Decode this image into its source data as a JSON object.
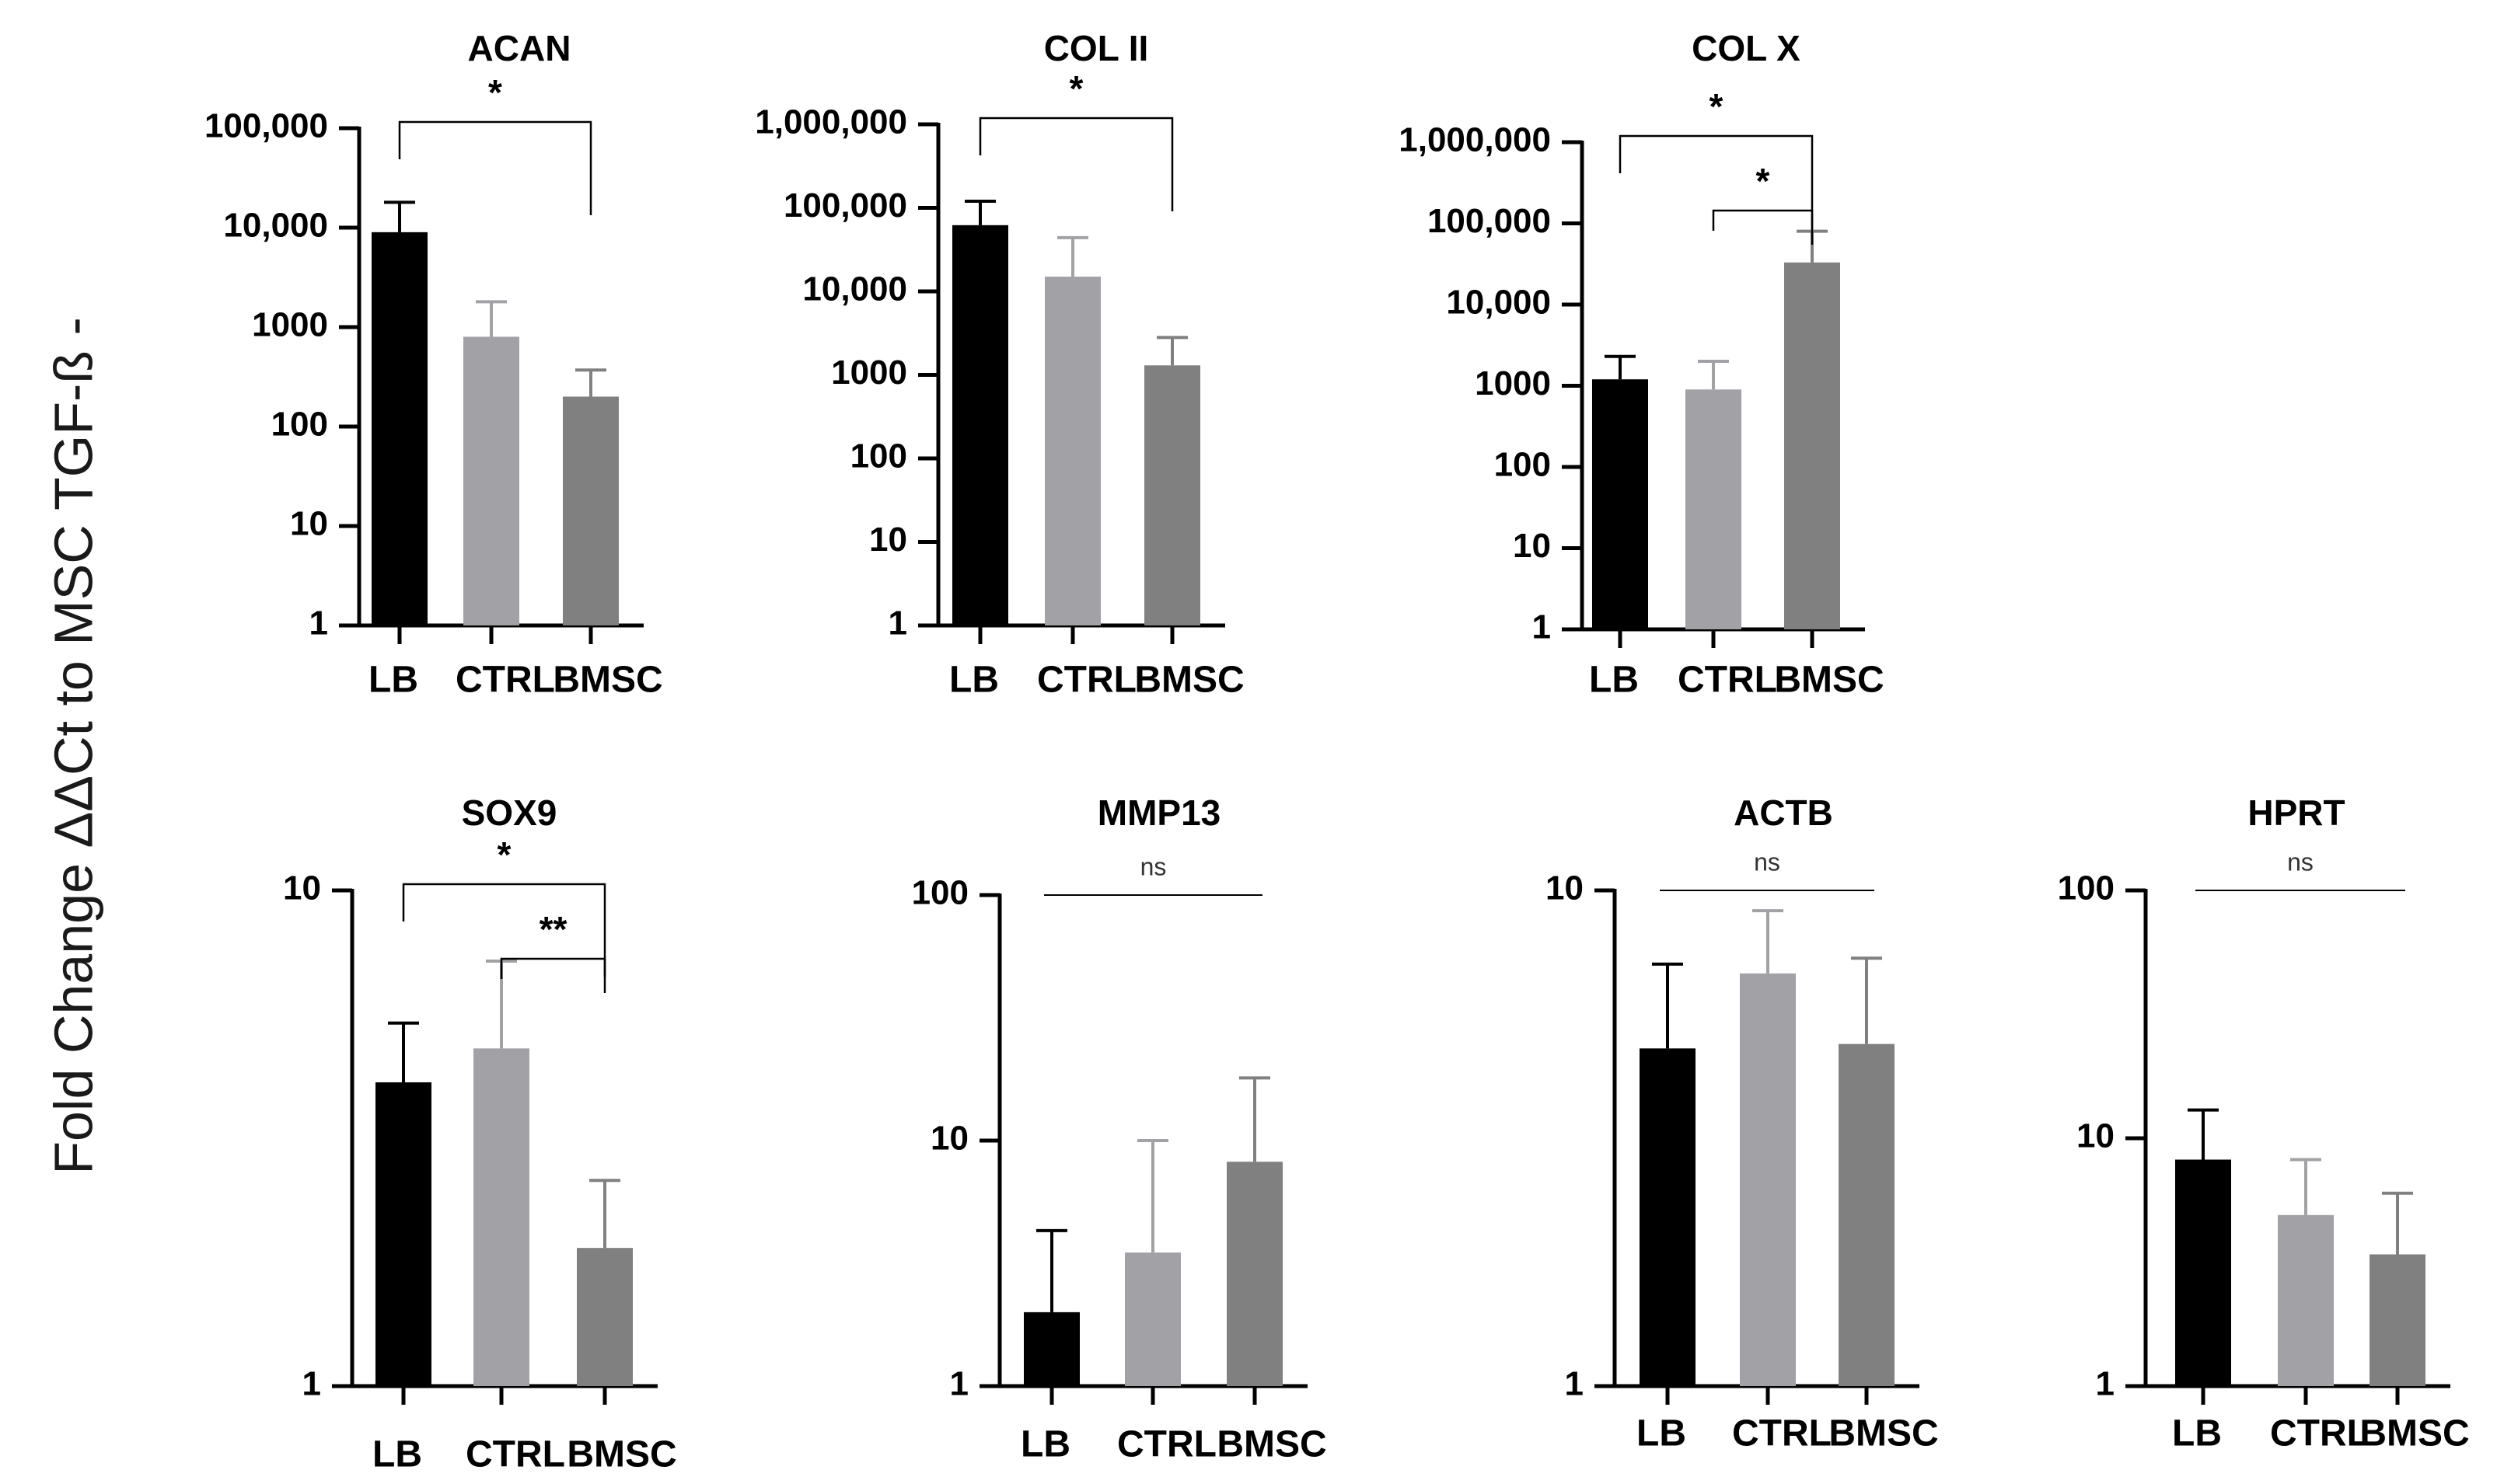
{
  "figure": {
    "y_axis_label": "Fold Change ΔΔCt to MSC  TGF-ß -"
  },
  "colors": {
    "LB": "#000000",
    "CTRL": "#a2a2a6",
    "BMSC": "#808080",
    "axis": "#000000",
    "bracket": "#000000"
  },
  "chart_data": [
    {
      "type": "bar",
      "title": "ACAN",
      "yscale": "log",
      "ylim": [
        1,
        100000
      ],
      "yticks": [
        1,
        10,
        100,
        1000,
        10000,
        100000
      ],
      "ytick_labels": [
        "1",
        "10",
        "100",
        "1000",
        "10,000",
        "100,000"
      ],
      "categories": [
        "LB",
        "CTRL",
        "BMSC"
      ],
      "values": [
        9000,
        800,
        200
      ],
      "errors_upper": [
        18000,
        1800,
        370
      ],
      "annotations": [
        {
          "from": "LB",
          "to": "BMSC",
          "level": 0,
          "label": "*"
        }
      ]
    },
    {
      "type": "bar",
      "title": "COL II",
      "yscale": "log",
      "ylim": [
        1,
        1000000
      ],
      "yticks": [
        1,
        10,
        100,
        1000,
        10000,
        100000,
        1000000
      ],
      "ytick_labels": [
        "1",
        "10",
        "100",
        "1000",
        "10,000",
        "100,000",
        "1,000,000"
      ],
      "categories": [
        "LB",
        "CTRL",
        "BMSC"
      ],
      "values": [
        62000,
        15000,
        1300
      ],
      "errors_upper": [
        120000,
        44000,
        2800
      ],
      "annotations": [
        {
          "from": "LB",
          "to": "BMSC",
          "level": 0,
          "label": "*"
        }
      ]
    },
    {
      "type": "bar",
      "title": "COL X",
      "yscale": "log",
      "ylim": [
        1,
        1000000
      ],
      "yticks": [
        1,
        10,
        100,
        1000,
        10000,
        100000,
        1000000
      ],
      "ytick_labels": [
        "1",
        "10",
        "100",
        "1000",
        "10,000",
        "100,000",
        "1,000,000"
      ],
      "categories": [
        "LB",
        "CTRL",
        "BMSC"
      ],
      "values": [
        1200,
        900,
        33000
      ],
      "errors_upper": [
        2300,
        2000,
        80000
      ],
      "annotations": [
        {
          "from": "LB",
          "to": "BMSC",
          "level": 0,
          "label": "*"
        },
        {
          "from": "CTRL",
          "to": "BMSC",
          "level": 1,
          "label": "*"
        }
      ]
    },
    {
      "type": "bar",
      "title": "SOX9",
      "yscale": "log",
      "ylim": [
        1,
        10
      ],
      "yticks": [
        1,
        10
      ],
      "ytick_labels": [
        "1",
        "10"
      ],
      "categories": [
        "LB",
        "CTRL",
        "BMSC"
      ],
      "values": [
        4.1,
        4.8,
        1.9
      ],
      "errors_upper": [
        5.4,
        7.2,
        2.6
      ],
      "annotations": [
        {
          "from": "LB",
          "to": "BMSC",
          "level": 0,
          "label": "*"
        },
        {
          "from": "CTRL",
          "to": "BMSC",
          "level": 1,
          "label": "**"
        }
      ]
    },
    {
      "type": "bar",
      "title": "MMP13",
      "yscale": "log",
      "ylim": [
        1,
        100
      ],
      "yticks": [
        1,
        10,
        100
      ],
      "ytick_labels": [
        "1",
        "10",
        "100"
      ],
      "categories": [
        "LB",
        "CTRL",
        "BMSC"
      ],
      "values": [
        2.0,
        3.5,
        8.2
      ],
      "errors_upper": [
        4.3,
        10.0,
        18.0
      ],
      "annotations": [
        {
          "from": "LB",
          "to": "BMSC",
          "level": 0,
          "label": "ns",
          "flat": true
        }
      ]
    },
    {
      "type": "bar",
      "title": "ACTB",
      "yscale": "log",
      "ylim": [
        1,
        10
      ],
      "yticks": [
        1,
        10
      ],
      "ytick_labels": [
        "1",
        "10"
      ],
      "categories": [
        "LB",
        "CTRL",
        "BMSC"
      ],
      "values": [
        4.8,
        6.8,
        4.9
      ],
      "errors_upper": [
        7.1,
        9.1,
        7.3
      ],
      "annotations": [
        {
          "from": "LB",
          "to": "BMSC",
          "level": 0,
          "label": "ns",
          "flat": true
        }
      ]
    },
    {
      "type": "bar",
      "title": "HPRT",
      "yscale": "log",
      "ylim": [
        1,
        100
      ],
      "yticks": [
        1,
        10,
        100
      ],
      "ytick_labels": [
        "1",
        "10",
        "100"
      ],
      "categories": [
        "LB",
        "CTRL",
        "BMSC"
      ],
      "values": [
        8.2,
        4.9,
        3.4
      ],
      "errors_upper": [
        13.0,
        8.2,
        6.0
      ],
      "annotations": [
        {
          "from": "LB",
          "to": "BMSC",
          "level": 0,
          "label": "ns",
          "flat": true
        }
      ]
    }
  ]
}
